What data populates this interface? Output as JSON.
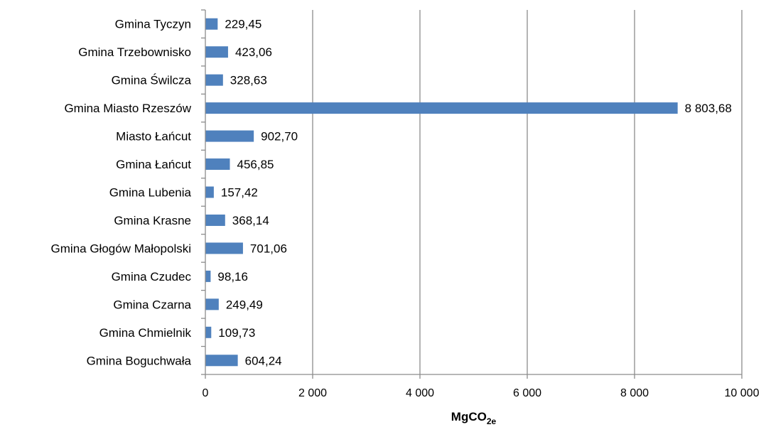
{
  "chart_data": {
    "type": "bar",
    "orientation": "horizontal",
    "categories": [
      "Gmina Tyczyn",
      "Gmina Trzebownisko",
      "Gmina Świlcza",
      "Gmina Miasto Rzeszów",
      "Miasto Łańcut",
      "Gmina Łańcut",
      "Gmina Lubenia",
      "Gmina Krasne",
      "Gmina Głogów Małopolski",
      "Gmina Czudec",
      "Gmina Czarna",
      "Gmina Chmielnik",
      "Gmina Boguchwała"
    ],
    "values": [
      229.45,
      423.06,
      328.63,
      8803.68,
      902.7,
      456.85,
      157.42,
      368.14,
      701.06,
      98.16,
      249.49,
      109.73,
      604.24
    ],
    "value_labels": [
      "229,45",
      "423,06",
      "328,63",
      "8 803,68",
      "902,70",
      "456,85",
      "157,42",
      "368,14",
      "701,06",
      "98,16",
      "249,49",
      "109,73",
      "604,24"
    ],
    "x_ticks": [
      0,
      2000,
      4000,
      6000,
      8000,
      10000
    ],
    "x_tick_labels": [
      "0",
      "2 000",
      "4 000",
      "6 000",
      "8 000",
      "10 000"
    ],
    "xlim": [
      0,
      10000
    ],
    "xlabel_main": "MgCO",
    "xlabel_sub": "2e",
    "grid": "vertical",
    "bar_color": "#4f81bd",
    "grid_color": "#8c8c8c"
  }
}
